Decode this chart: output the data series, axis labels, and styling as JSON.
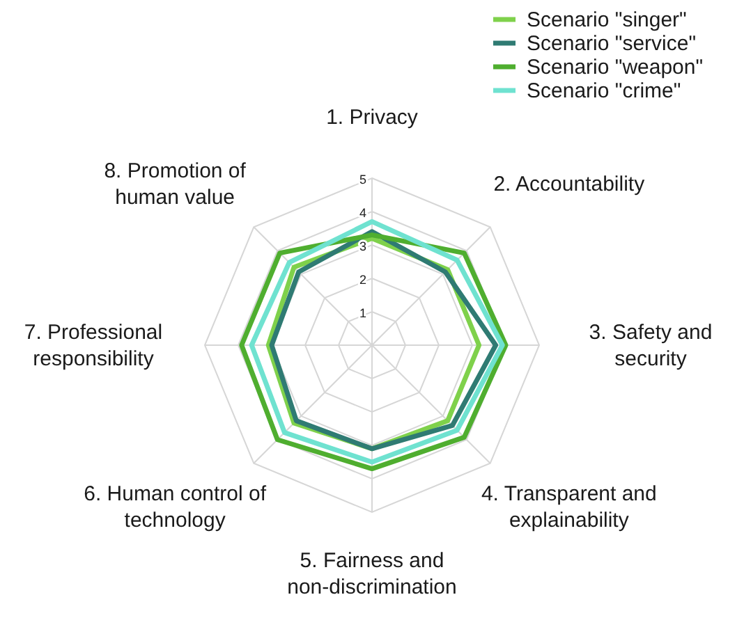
{
  "chart_data": {
    "type": "radar",
    "categories": [
      "1. Privacy",
      "2. Accountability",
      "3. Safety and\nsecurity",
      "4. Transparent and\nexplainability",
      "5. Fairness and\nnon-discrimination",
      "6. Human control of\ntechnology",
      "7. Professional\nresponsibility",
      "8. Promotion of\nhuman value"
    ],
    "ylim": [
      0,
      5
    ],
    "yticks": [
      1,
      2,
      3,
      4,
      5
    ],
    "grid": true,
    "legend": "top right",
    "series": [
      {
        "name": "Scenario \"singer\"",
        "color": "#7fd14b",
        "values": [
          3.2,
          3.2,
          3.2,
          3.2,
          3.1,
          3.3,
          3.1,
          3.3
        ]
      },
      {
        "name": "Scenario \"service\"",
        "color": "#2f7b73",
        "values": [
          3.4,
          3.1,
          3.7,
          3.4,
          3.1,
          3.2,
          3.0,
          3.1
        ]
      },
      {
        "name": "Scenario \"weapon\"",
        "color": "#4fae2f",
        "values": [
          3.3,
          3.9,
          4.0,
          3.9,
          3.7,
          4.0,
          3.9,
          3.9
        ]
      },
      {
        "name": "Scenario \"crime\"",
        "color": "#6fe2d0",
        "values": [
          3.7,
          3.6,
          3.9,
          3.6,
          3.5,
          3.7,
          3.6,
          3.5
        ]
      }
    ]
  }
}
